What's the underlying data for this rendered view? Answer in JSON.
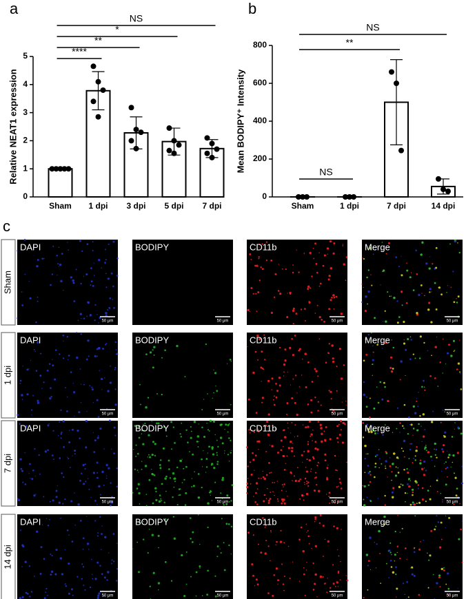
{
  "chart_data": [
    {
      "type": "bar",
      "panel": "a",
      "y_label": "Relative NEAT1 expression",
      "categories": [
        "Sham",
        "1 dpi",
        "3 dpi",
        "5 dpi",
        "7 dpi"
      ],
      "values": [
        1,
        3.78,
        2.28,
        1.97,
        1.72
      ],
      "errors": [
        0,
        0.68,
        0.57,
        0.48,
        0.32
      ],
      "points": [
        [
          1,
          1,
          1,
          1,
          1
        ],
        [
          4.65,
          4.1,
          3.8,
          3.4,
          2.85
        ],
        [
          3.18,
          2.4,
          2.3,
          2.0,
          1.72
        ],
        [
          2.45,
          2.0,
          1.85,
          1.65,
          1.55
        ],
        [
          2.1,
          1.9,
          1.7,
          1.55,
          1.4
        ]
      ],
      "annotations": [
        "****",
        "**",
        "*",
        "NS"
      ],
      "ylim": [
        0,
        5
      ],
      "yticks": [
        0,
        1,
        2,
        3,
        4,
        5
      ],
      "color": "#ffffff"
    },
    {
      "type": "bar",
      "panel": "b",
      "y_label": "Mean BODIPY⁺ Intensity",
      "categories": [
        "Sham",
        "1 dpi",
        "7 dpi",
        "14 dpi"
      ],
      "values": [
        0,
        0,
        500,
        55
      ],
      "errors": [
        0,
        0,
        225,
        40
      ],
      "points": [
        [
          0,
          0,
          0
        ],
        [
          0,
          0,
          0
        ],
        [
          660,
          600,
          245
        ],
        [
          95,
          40,
          30
        ]
      ],
      "annotations": [
        "NS",
        "**",
        "NS"
      ],
      "ylim": [
        0,
        800
      ],
      "yticks": [
        0,
        200,
        400,
        600,
        800
      ],
      "color": "#ffffff"
    }
  ],
  "panel_c": {
    "label": "c",
    "rows": [
      "Sham",
      "1 dpi",
      "7 dpi",
      "14 dpi"
    ],
    "columns": [
      "DAPI",
      "BODIPY",
      "CD11b",
      "Merge"
    ],
    "scale_bar": "50 μm"
  }
}
